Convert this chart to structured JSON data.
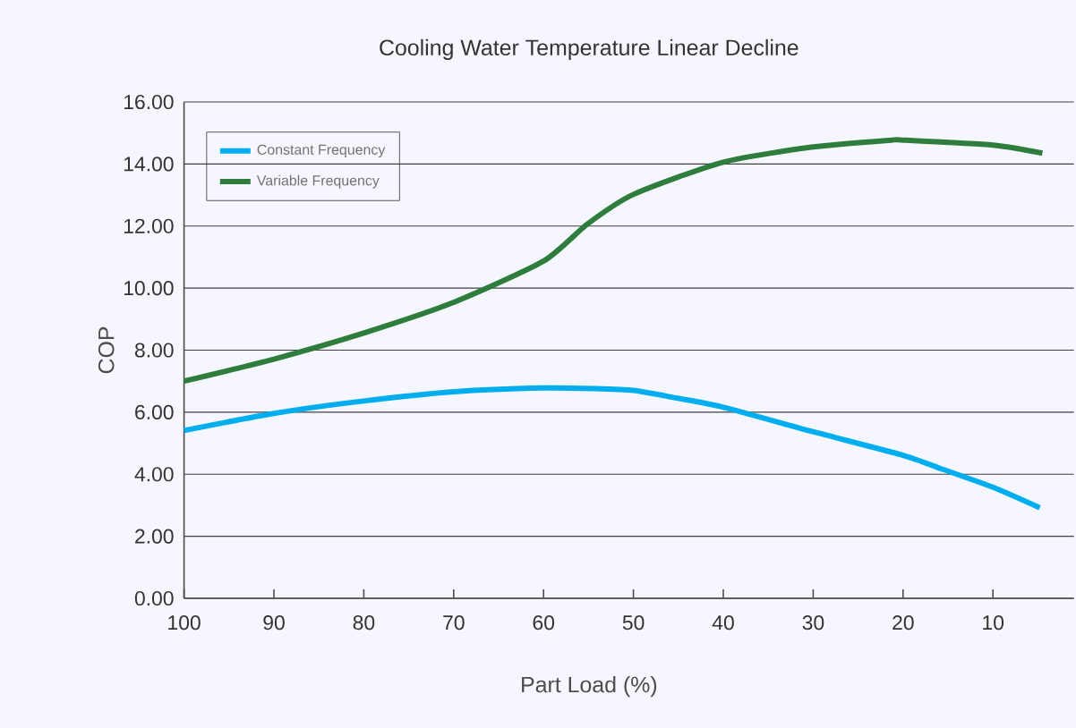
{
  "chart_data": {
    "type": "line",
    "title": "Cooling Water Temperature Linear Decline",
    "xlabel": "Part Load (%)",
    "ylabel": "COP",
    "x": [
      100,
      90,
      80,
      70,
      60,
      54.3,
      50,
      45.3,
      40,
      30,
      20,
      15.8,
      10,
      4.8
    ],
    "series": [
      {
        "name": "Constant Frequency",
        "color": "#00aeef",
        "values": [
          5.41,
          5.96,
          6.36,
          6.66,
          6.78,
          6.76,
          6.7,
          6.46,
          6.16,
          5.37,
          4.61,
          4.18,
          3.58,
          2.92
        ]
      },
      {
        "name": "Variable  Frequency",
        "color": "#2e7d3c",
        "x": [
          100,
          90,
          80,
          70,
          60,
          55.1,
          50,
          40,
          30,
          21.3,
          20,
          10,
          4.5
        ],
        "values": [
          7.0,
          7.71,
          8.55,
          9.54,
          10.87,
          12.07,
          13.02,
          14.06,
          14.55,
          14.77,
          14.77,
          14.61,
          14.35
        ]
      }
    ],
    "xlim": [
      100,
      1
    ],
    "xticks": [
      100,
      90,
      80,
      70,
      60,
      50,
      40,
      30,
      20,
      10
    ],
    "ylim": [
      0,
      16
    ],
    "yticks": [
      {
        "value": 0,
        "label": "0.00"
      },
      {
        "value": 2,
        "label": "2.00"
      },
      {
        "value": 4,
        "label": "4.00"
      },
      {
        "value": 6,
        "label": "6.00"
      },
      {
        "value": 8,
        "label": "8.00"
      },
      {
        "value": 10,
        "label": "10.00"
      },
      {
        "value": 12,
        "label": "12.00"
      },
      {
        "value": 14,
        "label": "14.00"
      },
      {
        "value": 16,
        "label": "16.00"
      }
    ],
    "grid": "y",
    "legend": "top left",
    "line_style": "solid",
    "marker": "none"
  }
}
